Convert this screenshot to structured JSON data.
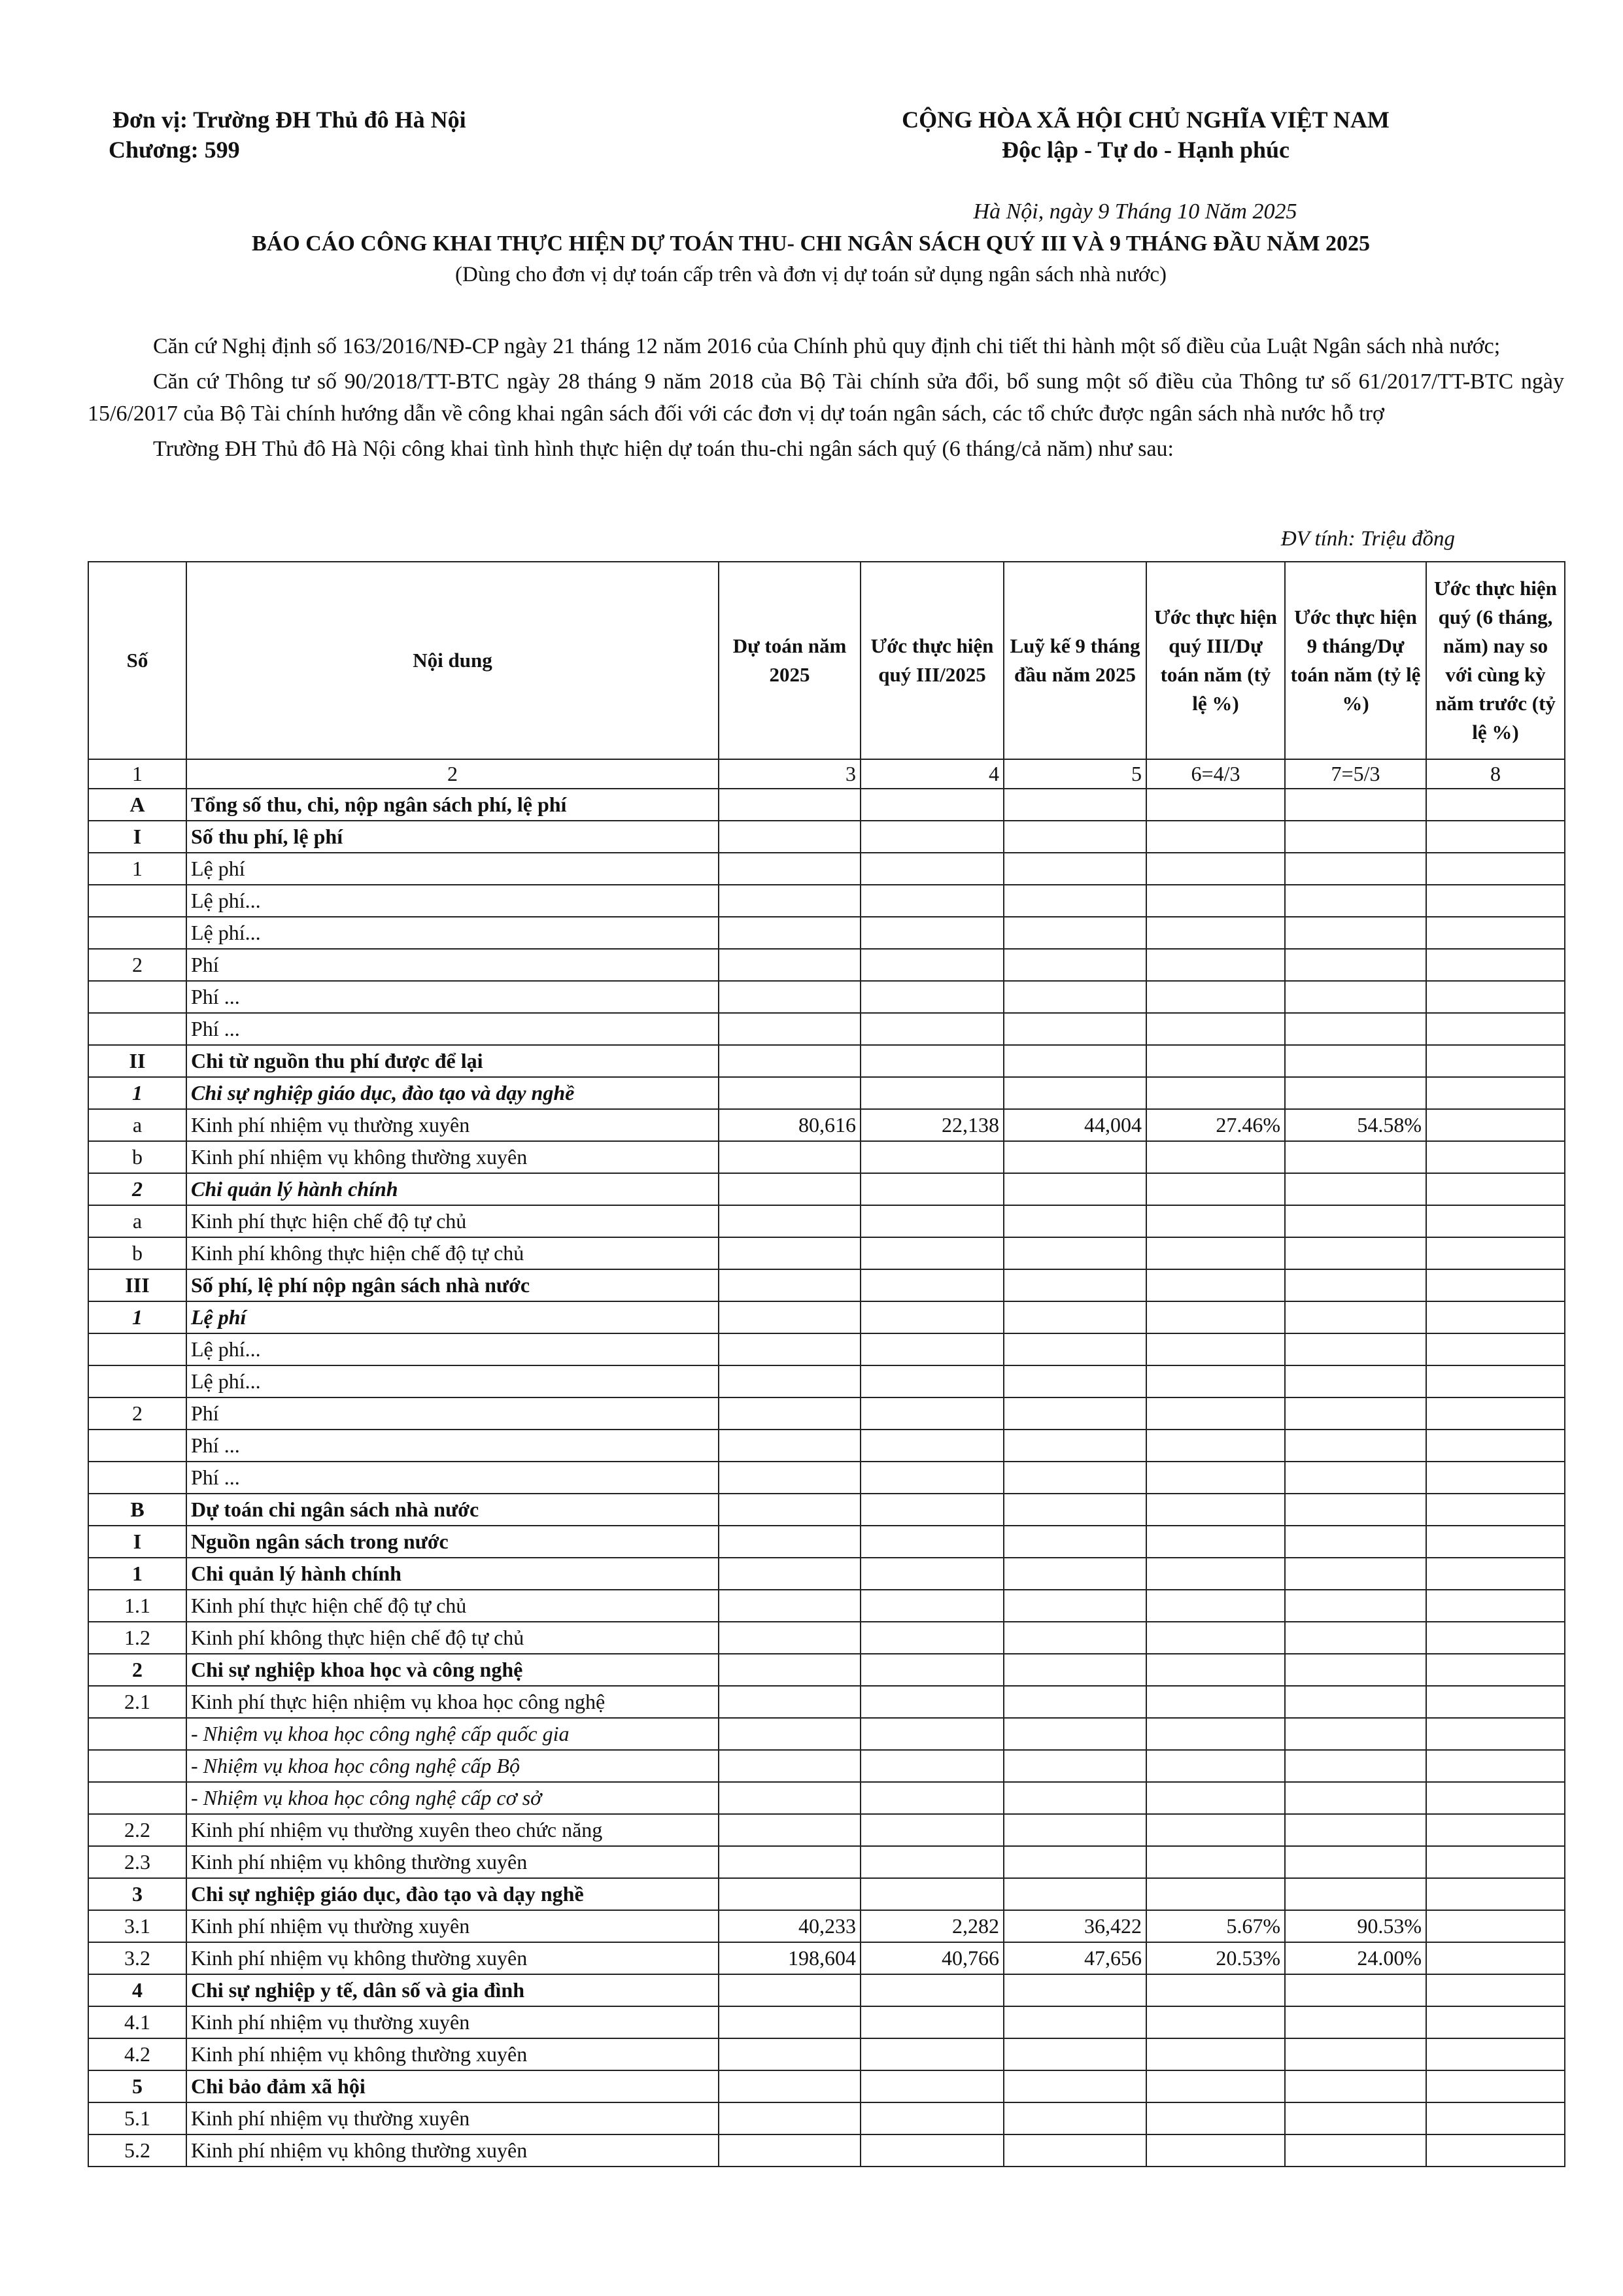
{
  "header": {
    "unit": "Đơn vị: Trường ĐH Thủ đô Hà Nội",
    "chapter": "Chương: 599",
    "nation": "CỘNG HÒA XÃ HỘI CHỦ NGHĨA VIỆT NAM",
    "motto": "Độc lập - Tự do - Hạnh phúc"
  },
  "date": "Hà Nội, ngày 9 Tháng 10 Năm 2025",
  "title": "BÁO CÁO CÔNG KHAI THỰC HIỆN DỰ TOÁN THU- CHI NGÂN SÁCH QUÝ III VÀ 9 THÁNG ĐẦU NĂM 2025",
  "subtitle": "(Dùng cho đơn vị dự toán cấp trên và đơn vị dự toán sử dụng ngân sách nhà nước)",
  "paragraphs": [
    "Căn cứ Nghị định số 163/2016/NĐ-CP ngày 21 tháng 12 năm 2016 của Chính phủ quy định chi tiết thi hành một số điều của Luật Ngân sách nhà nước;",
    "Căn cứ Thông tư số 90/2018/TT-BTC ngày 28 tháng 9 năm 2018 của Bộ Tài chính sửa đổi, bổ sung một số điều của Thông tư số 61/2017/TT-BTC ngày 15/6/2017 của Bộ Tài chính hướng dẫn về công khai ngân sách đối với các đơn vị dự toán ngân sách, các tổ chức được ngân sách nhà nước hỗ trợ",
    "Trường ĐH Thủ đô Hà Nội công khai tình hình thực hiện dự toán thu-chi ngân sách quý (6 tháng/cả năm) như sau:"
  ],
  "unit_note": "ĐV tính: Triệu đồng",
  "table": {
    "columns": [
      "Số",
      "Nội dung",
      "Dự toán năm 2025",
      "Ước thực hiện quý III/2025",
      "Luỹ kế 9 tháng đầu năm 2025",
      "Ước thực hiện quý III/Dự toán năm (tỷ lệ %)",
      "Ước thực hiện 9 tháng/Dự toán năm (tỷ lệ %)",
      "Ước thực hiện quý (6 tháng, năm) nay so với cùng kỳ năm trước (tỷ lệ %)"
    ],
    "column_numbers": [
      "1",
      "2",
      "3",
      "4",
      "5",
      "6=4/3",
      "7=5/3",
      "8"
    ],
    "rows": [
      {
        "no": "A",
        "content": "Tổng số thu, chi, nộp ngân sách phí, lệ phí",
        "style": "bold"
      },
      {
        "no": "I",
        "content": "Số thu phí, lệ phí",
        "style": "bold"
      },
      {
        "no": "1",
        "content": "Lệ phí"
      },
      {
        "content": "Lệ phí..."
      },
      {
        "content": "Lệ phí..."
      },
      {
        "no": "2",
        "content": "Phí"
      },
      {
        "content": "Phí ..."
      },
      {
        "content": "Phí ..."
      },
      {
        "no": "II",
        "content": "Chi từ nguồn thu phí được để lại",
        "style": "bold"
      },
      {
        "no": "1",
        "content": "Chi sự nghiệp giáo dục, đào tạo và dạy nghề",
        "style": "bold-italic"
      },
      {
        "no": "a",
        "content": "Kinh phí nhiệm vụ thường xuyên",
        "cells": [
          "80,616",
          "22,138",
          "44,004",
          "27.46%",
          "54.58%"
        ]
      },
      {
        "no": "b",
        "content": "Kinh phí nhiệm vụ không thường xuyên"
      },
      {
        "no": "2",
        "content": "Chi quản lý hành chính",
        "style": "bold-italic"
      },
      {
        "no": "a",
        "content": "Kinh phí thực hiện chế độ tự chủ"
      },
      {
        "no": "b",
        "content": "Kinh phí không thực hiện chế độ tự chủ"
      },
      {
        "no": "III",
        "content": "Số phí, lệ phí nộp ngân sách nhà nước",
        "style": "bold"
      },
      {
        "no": "1",
        "content": "Lệ phí",
        "style": "bold-italic"
      },
      {
        "content": "Lệ phí..."
      },
      {
        "content": "Lệ phí..."
      },
      {
        "no": "2",
        "content": "Phí"
      },
      {
        "content": "Phí ..."
      },
      {
        "content": "Phí ..."
      },
      {
        "no": "B",
        "content": "Dự toán chi ngân sách nhà nước",
        "style": "bold"
      },
      {
        "no": "I",
        "content": "Nguồn ngân sách trong nước",
        "style": "bold"
      },
      {
        "no": "1",
        "content": "Chi quản lý hành chính",
        "style": "bold"
      },
      {
        "no": "1.1",
        "content": "Kinh phí thực hiện chế độ tự chủ"
      },
      {
        "no": "1.2",
        "content": "Kinh phí không thực hiện chế độ tự chủ"
      },
      {
        "no": "2",
        "content": "Chi sự nghiệp khoa học và công nghệ",
        "style": "bold"
      },
      {
        "no": "2.1",
        "content": "Kinh phí thực hiện nhiệm vụ khoa học công nghệ"
      },
      {
        "content": "- Nhiệm vụ khoa học công nghệ cấp quốc gia",
        "style": "italic"
      },
      {
        "content": "- Nhiệm vụ khoa học công nghệ cấp Bộ",
        "style": "italic"
      },
      {
        "content": "- Nhiệm vụ khoa học công nghệ cấp cơ sở",
        "style": "italic"
      },
      {
        "no": "2.2",
        "content": "Kinh phí nhiệm vụ thường xuyên theo chức năng"
      },
      {
        "no": "2.3",
        "content": "Kinh phí nhiệm vụ không thường xuyên"
      },
      {
        "no": "3",
        "content": "Chi sự nghiệp giáo dục, đào tạo và dạy nghề",
        "style": "bold"
      },
      {
        "no": "3.1",
        "content": "Kinh phí nhiệm vụ thường xuyên",
        "cells": [
          "40,233",
          "2,282",
          "36,422",
          "5.67%",
          "90.53%"
        ]
      },
      {
        "no": "3.2",
        "content": "Kinh phí nhiệm vụ không thường xuyên",
        "cells": [
          "198,604",
          "40,766",
          "47,656",
          "20.53%",
          "24.00%"
        ]
      },
      {
        "no": "4",
        "content": "Chi sự nghiệp y tế, dân số và gia đình",
        "style": "bold"
      },
      {
        "no": "4.1",
        "content": "Kinh phí nhiệm vụ thường xuyên"
      },
      {
        "no": "4.2",
        "content": "Kinh phí nhiệm vụ không thường xuyên"
      },
      {
        "no": "5",
        "content": "Chi bảo đảm xã hội",
        "style": "bold"
      },
      {
        "no": "5.1",
        "content": "Kinh phí nhiệm vụ thường xuyên"
      },
      {
        "no": "5.2",
        "content": "Kinh phí nhiệm vụ không thường xuyên"
      }
    ]
  }
}
